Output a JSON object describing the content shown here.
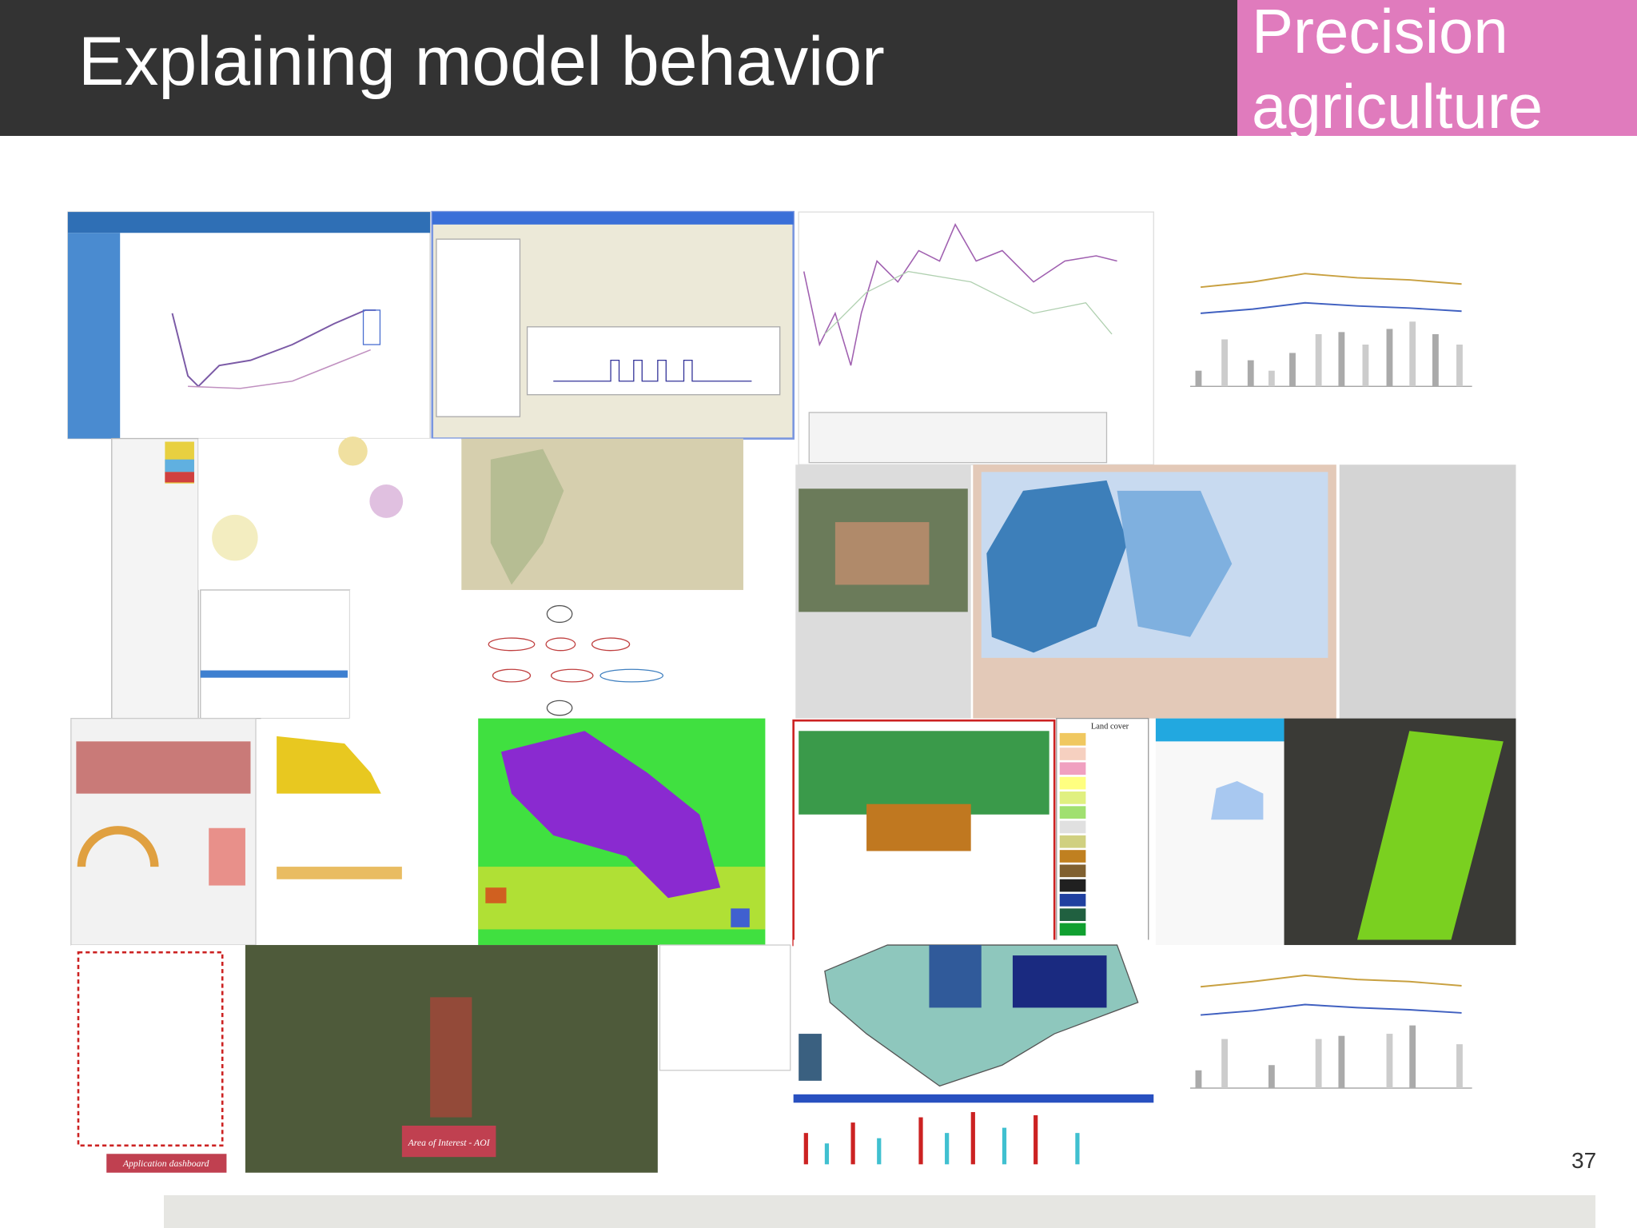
{
  "header": {
    "title": "Explaining model behavior",
    "tag": "Precision agriculture"
  },
  "page_number": "37",
  "collage": {
    "labels": [
      "Application dashboard",
      "Area of Interest - AOI",
      "Land cover"
    ]
  }
}
